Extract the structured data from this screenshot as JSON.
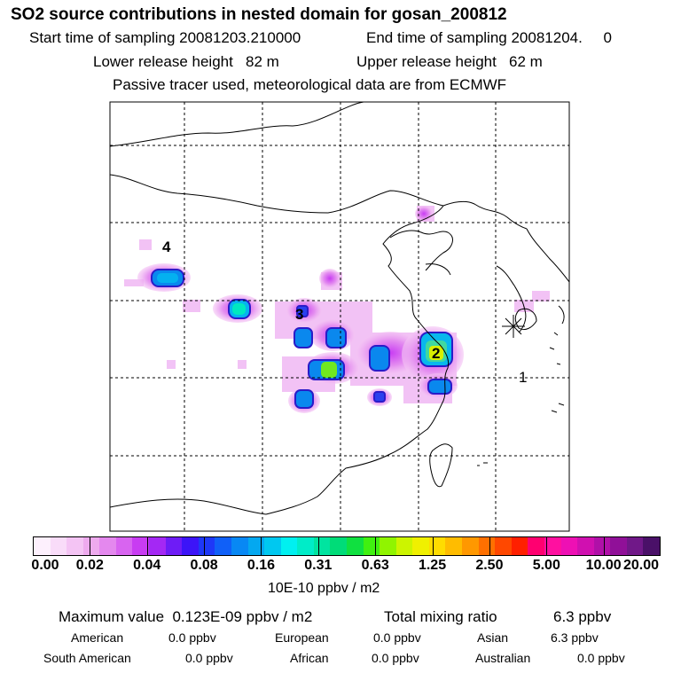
{
  "header": {
    "title": "SO2 source contributions in nested domain for gosan_200812",
    "start_sampling": "Start time of sampling 20081203.210000",
    "end_sampling": "End time of sampling 20081204.     0",
    "lower_release": "Lower release height   82 m",
    "upper_release": "Upper release height   62 m",
    "tracer_note": "Passive tracer used, meteorological data are from ECMWF"
  },
  "map": {
    "source_labels": [
      "4",
      "3",
      "2",
      "1"
    ],
    "receptor_marker": "gosan-receptor"
  },
  "colorbar": {
    "colors": [
      "#fdf0fd",
      "#f9dcf9",
      "#f4c4f4",
      "#eeaaee",
      "#e488ee",
      "#d864f0",
      "#c83cf2",
      "#a428f4",
      "#6e1cf6",
      "#3c14f8",
      "#1e38f8",
      "#1060f8",
      "#0888f4",
      "#04a8f0",
      "#00c8f0",
      "#00f0f0",
      "#00ecc8",
      "#00e4a0",
      "#00dc78",
      "#10e040",
      "#40f010",
      "#90f400",
      "#ccf400",
      "#f0f000",
      "#ffdc00",
      "#ffbc00",
      "#ff9800",
      "#ff7000",
      "#ff4800",
      "#ff2000",
      "#ff0070",
      "#ff10a0",
      "#ee10b4",
      "#d010b0",
      "#b010a8",
      "#901098",
      "#701888",
      "#4a1068"
    ],
    "tick_labels": [
      "0.00",
      "0.02",
      "0.04",
      "0.08",
      "0.16",
      "0.31",
      "0.63",
      "1.25",
      "2.50",
      "5.00",
      "10.00",
      "20.00"
    ],
    "unit_label": "10E-10 ppbv / m2"
  },
  "summary": {
    "maximum_value": "Maximum value  0.123E-09 ppbv / m2",
    "total_label": "Total mixing ratio",
    "total_value": "6.3 ppbv",
    "regions": [
      {
        "name": "American",
        "value": "0.0 ppbv"
      },
      {
        "name": "European",
        "value": "0.0 ppbv"
      },
      {
        "name": "Asian",
        "value": "6.3 ppbv"
      },
      {
        "name": "South American",
        "value": "0.0 ppbv"
      },
      {
        "name": "African",
        "value": "0.0 ppbv"
      },
      {
        "name": "Australian",
        "value": "0.0 ppbv"
      }
    ]
  }
}
